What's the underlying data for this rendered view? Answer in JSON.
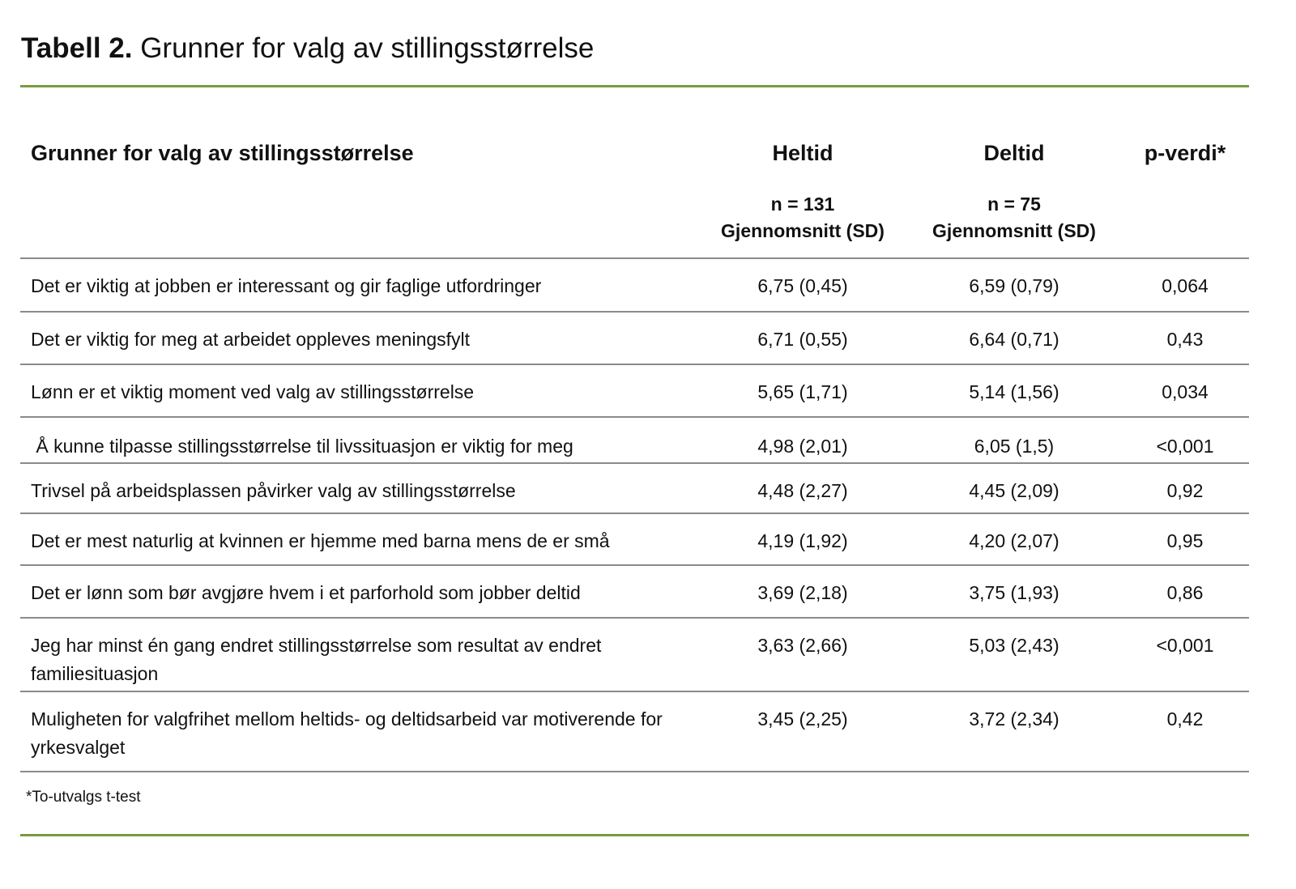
{
  "title": {
    "label": "Tabell 2.",
    "text": "Grunner for valg av stillingsstørrelse"
  },
  "accent_color": "#7a9a3e",
  "columns": {
    "reason": "Grunner for valg av stillingsstørrelse",
    "heltid": {
      "label": "Heltid",
      "n": "n = 131",
      "stat": "Gjennomsnitt (SD)"
    },
    "deltid": {
      "label": "Deltid",
      "n": "n = 75",
      "stat": "Gjennomsnitt (SD)"
    },
    "p": "p-verdi*"
  },
  "rows": [
    {
      "reason": "Det er viktig at jobben er interessant og gir faglige utfordringer",
      "heltid": "6,75 (0,45)",
      "deltid": "6,59 (0,79)",
      "p": "0,064"
    },
    {
      "reason": "Det er viktig for meg at arbeidet oppleves meningsfylt",
      "heltid": "6,71 (0,55)",
      "deltid": "6,64 (0,71)",
      "p": "0,43"
    },
    {
      "reason": "Lønn er et viktig moment ved valg av stillingsstørrelse",
      "heltid": "5,65 (1,71)",
      "deltid": "5,14 (1,56)",
      "p": "0,034"
    },
    {
      "reason": " Å kunne tilpasse stillingsstørrelse til livssituasjon er viktig for meg",
      "heltid": "4,98 (2,01)",
      "deltid": "6,05 (1,5)",
      "p": "<0,001"
    },
    {
      "reason": "Trivsel på arbeidsplassen påvirker valg av stillingsstørrelse",
      "heltid": "4,48 (2,27)",
      "deltid": "4,45 (2,09)",
      "p": "0,92"
    },
    {
      "reason": "Det er mest naturlig at kvinnen er hjemme med barna mens de er små",
      "heltid": "4,19 (1,92)",
      "deltid": "4,20 (2,07)",
      "p": "0,95"
    },
    {
      "reason": "Det er lønn som bør avgjøre hvem i et parforhold som jobber deltid",
      "heltid": "3,69 (2,18)",
      "deltid": "3,75 (1,93)",
      "p": "0,86"
    },
    {
      "reason": "Jeg har minst én gang endret stillingsstørrelse som resultat av endret familiesituasjon",
      "heltid": "3,63 (2,66)",
      "deltid": "5,03 (2,43)",
      "p": "<0,001"
    },
    {
      "reason": "Muligheten for valgfrihet mellom heltids- og deltidsarbeid var motiverende for yrkesvalget",
      "heltid": "3,45 (2,25)",
      "deltid": "3,72 (2,34)",
      "p": "0,42"
    }
  ],
  "footnote": "*To-utvalgs t-test"
}
